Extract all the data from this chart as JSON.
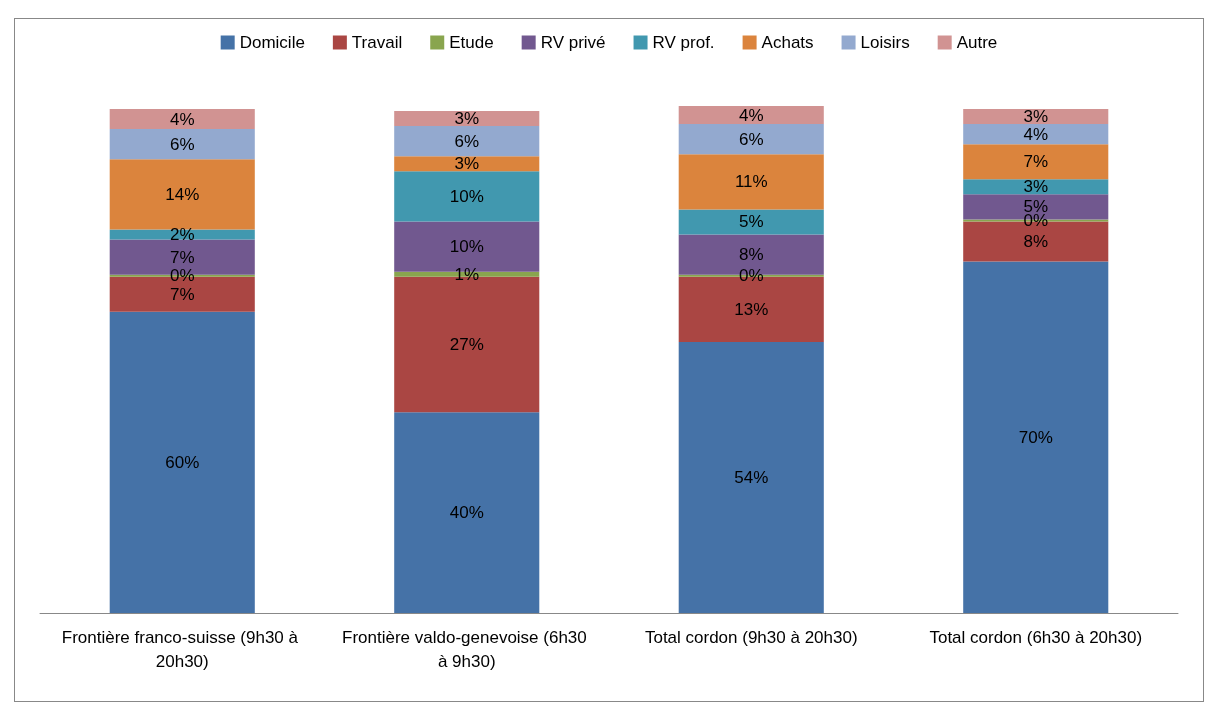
{
  "chart_data": {
    "type": "bar",
    "stacked": true,
    "categories": [
      "Frontière franco-suisse (9h30 à 20h30)",
      "Frontière valdo-genevoise (6h30 à 9h30)",
      "Total cordon (9h30 à 20h30)",
      "Total cordon (6h30 à 20h30)"
    ],
    "series": [
      {
        "name": "Domicile",
        "color": "#4572a7",
        "values": [
          60,
          40,
          54,
          70
        ],
        "value_labels": [
          "60%",
          "40%",
          "54%",
          "70%"
        ]
      },
      {
        "name": "Travail",
        "color": "#aa4643",
        "values": [
          7,
          27,
          13,
          8
        ],
        "value_labels": [
          "7%",
          "27%",
          "13%",
          "8%"
        ]
      },
      {
        "name": "Etude",
        "color": "#89a54e",
        "values": [
          0.4,
          1,
          0.4,
          0.4
        ],
        "value_labels": [
          "0%",
          "1%",
          "0%",
          "0%"
        ]
      },
      {
        "name": "RV privé",
        "color": "#71588f",
        "values": [
          7,
          10,
          8,
          5
        ],
        "value_labels": [
          "7%",
          "10%",
          "8%",
          "5%"
        ]
      },
      {
        "name": "RV prof.",
        "color": "#4198af",
        "values": [
          2,
          10,
          5,
          3
        ],
        "value_labels": [
          "2%",
          "10%",
          "5%",
          "3%"
        ]
      },
      {
        "name": "Achats",
        "color": "#db843d",
        "values": [
          14,
          3,
          11,
          7
        ],
        "value_labels": [
          "14%",
          "3%",
          "11%",
          "7%"
        ]
      },
      {
        "name": "Loisirs",
        "color": "#93a9cf",
        "values": [
          6,
          6,
          6,
          4
        ],
        "value_labels": [
          "6%",
          "6%",
          "6%",
          "4%"
        ]
      },
      {
        "name": "Autre",
        "color": "#d19392",
        "values": [
          4,
          3,
          4,
          3
        ],
        "value_labels": [
          "4%",
          "3%",
          "4%",
          "3%"
        ]
      }
    ],
    "ylim": [
      0,
      101
    ],
    "tick_labels": "x",
    "legend": "top"
  }
}
